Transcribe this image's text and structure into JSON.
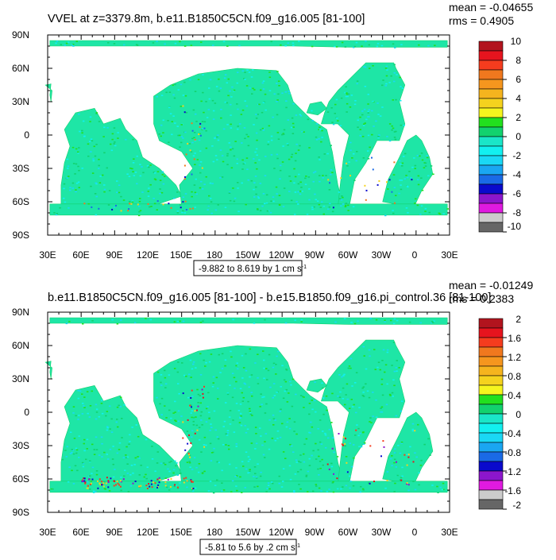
{
  "palette": [
    "#666666",
    "#cccccc",
    "#e01ae0",
    "#8c16cc",
    "#0a0acc",
    "#1a6ae6",
    "#1aa6f2",
    "#1ad8f5",
    "#12f0f0",
    "#1ae6c8",
    "#12d26e",
    "#22e01e",
    "#f5f51e",
    "#f5d21e",
    "#f5b41e",
    "#f5961e",
    "#f0781e",
    "#f53c1e",
    "#e6141e",
    "#b2141e"
  ],
  "map_fill": {
    "base": "#1ee6a6",
    "speckles": [
      "#12d26e",
      "#12f0f0",
      "#22e01e",
      "#1ad8f5"
    ]
  },
  "panels": [
    {
      "title": "VVEL at z=3379.8m, b.e11.B1850C5CN.f09_g16.005 [81-100]",
      "mean": "mean = -0.04655",
      "rms": "rms = 0.4905",
      "cn_info": "-9.882 to 8.619 by 1 cm s",
      "cn_units_sup": "-1",
      "lat_labels": [
        "90N",
        "60N",
        "30N",
        "0",
        "30S",
        "60S",
        "90S"
      ],
      "lon_labels": [
        "30E",
        "60E",
        "90E",
        "120E",
        "150E",
        "180",
        "150W",
        "120W",
        "90W",
        "60W",
        "30W",
        "0",
        "30E"
      ],
      "colorbar": {
        "levels": [
          "10",
          "8",
          "6",
          "4",
          "2",
          "0",
          "-2",
          "-4",
          "-6",
          "-8",
          "-10"
        ]
      }
    },
    {
      "title": "b.e11.B1850C5CN.f09_g16.005 [81-100] - b.e15.B1850.f09_g16.pi_control.36 [81-100]",
      "mean": "mean = -0.01249",
      "rms": "rms = 0.2383",
      "cn_info": "-5.81 to 5.6 by .2 cm s",
      "cn_units_sup": "-1",
      "lat_labels": [
        "90N",
        "60N",
        "30N",
        "0",
        "30S",
        "60S",
        "90S"
      ],
      "lon_labels": [
        "30E",
        "60E",
        "90E",
        "120E",
        "150E",
        "180",
        "150W",
        "120W",
        "90W",
        "60W",
        "30W",
        "0",
        "30E"
      ],
      "colorbar": {
        "levels": [
          "2",
          "1.6",
          "1.2",
          "0.8",
          "0.4",
          "0",
          "-0.4",
          "-0.8",
          "-1.2",
          "-1.6",
          "-2"
        ]
      }
    }
  ],
  "chart_data": [
    {
      "type": "heatmap",
      "title": "VVEL at z=3379.8m, b.e11.B1850C5CN.f09_g16.005 [81-100]",
      "variable": "VVEL",
      "units": "cm s-1",
      "x_axis": {
        "type": "longitude",
        "range": [
          30,
          390
        ],
        "ticks": [
          "30E",
          "60E",
          "90E",
          "120E",
          "150E",
          "180",
          "150W",
          "120W",
          "90W",
          "60W",
          "30W",
          "0",
          "30E"
        ]
      },
      "y_axis": {
        "type": "latitude",
        "range": [
          -90,
          90
        ],
        "ticks": [
          "90N",
          "60N",
          "30N",
          "0",
          "30S",
          "60S",
          "90S"
        ]
      },
      "stats": {
        "mean": -0.04655,
        "rms": 0.4905
      },
      "contour_min": -9.882,
      "contour_max": 8.619,
      "contour_interval": 1,
      "colorbar_levels": [
        -10,
        -8,
        -6,
        -4,
        -2,
        0,
        2,
        4,
        6,
        8,
        10
      ]
    },
    {
      "type": "heatmap",
      "title": "b.e11.B1850C5CN.f09_g16.005 [81-100] - b.e15.B1850.f09_g16.pi_control.36 [81-100]",
      "variable": "VVEL difference",
      "units": "cm s-1",
      "x_axis": {
        "type": "longitude",
        "range": [
          30,
          390
        ],
        "ticks": [
          "30E",
          "60E",
          "90E",
          "120E",
          "150E",
          "180",
          "150W",
          "120W",
          "90W",
          "60W",
          "30W",
          "0",
          "30E"
        ]
      },
      "y_axis": {
        "type": "latitude",
        "range": [
          -90,
          90
        ],
        "ticks": [
          "90N",
          "60N",
          "30N",
          "0",
          "30S",
          "60S",
          "90S"
        ]
      },
      "stats": {
        "mean": -0.01249,
        "rms": 0.2383
      },
      "contour_min": -5.81,
      "contour_max": 5.6,
      "contour_interval": 0.2,
      "colorbar_levels": [
        -2,
        -1.6,
        -1.2,
        -0.8,
        -0.4,
        0,
        0.4,
        0.8,
        1.2,
        1.6,
        2
      ]
    }
  ],
  "ocean_regions": [
    {
      "name": "arctic",
      "poly": [
        [
          32,
          85
        ],
        [
          388,
          85
        ],
        [
          388,
          79
        ],
        [
          300,
          79
        ],
        [
          250,
          80
        ],
        [
          180,
          80
        ],
        [
          100,
          80
        ],
        [
          32,
          80
        ]
      ]
    },
    {
      "name": "indian",
      "poly": [
        [
          42,
          -65
        ],
        [
          42,
          -45
        ],
        [
          45,
          -25
        ],
        [
          50,
          -10
        ],
        [
          45,
          5
        ],
        [
          55,
          20
        ],
        [
          72,
          24
        ],
        [
          80,
          10
        ],
        [
          95,
          15
        ],
        [
          100,
          5
        ],
        [
          110,
          -5
        ],
        [
          115,
          -20
        ],
        [
          130,
          -30
        ],
        [
          145,
          -45
        ],
        [
          150,
          -55
        ],
        [
          120,
          -65
        ],
        [
          80,
          -68
        ]
      ]
    },
    {
      "name": "pacific",
      "poly": [
        [
          150,
          -65
        ],
        [
          148,
          -45
        ],
        [
          160,
          -30
        ],
        [
          150,
          -15
        ],
        [
          130,
          -5
        ],
        [
          125,
          10
        ],
        [
          125,
          35
        ],
        [
          140,
          45
        ],
        [
          165,
          55
        ],
        [
          200,
          60
        ],
        [
          235,
          58
        ],
        [
          245,
          45
        ],
        [
          250,
          30
        ],
        [
          265,
          15
        ],
        [
          280,
          5
        ],
        [
          285,
          -15
        ],
        [
          290,
          -45
        ],
        [
          295,
          -65
        ],
        [
          220,
          -70
        ]
      ]
    },
    {
      "name": "atlantic",
      "poly": [
        [
          300,
          -65
        ],
        [
          305,
          -40
        ],
        [
          315,
          -25
        ],
        [
          325,
          -5
        ],
        [
          345,
          -5
        ],
        [
          350,
          10
        ],
        [
          345,
          30
        ],
        [
          350,
          45
        ],
        [
          342,
          60
        ],
        [
          340,
          65
        ],
        [
          315,
          65
        ],
        [
          300,
          50
        ],
        [
          290,
          40
        ],
        [
          282,
          30
        ],
        [
          278,
          20
        ],
        [
          275,
          10
        ],
        [
          290,
          10
        ],
        [
          300,
          0
        ],
        [
          295,
          -20
        ],
        [
          292,
          -45
        ],
        [
          290,
          -65
        ]
      ]
    },
    {
      "name": "atlantic-east",
      "poly": [
        [
          358,
          -65
        ],
        [
          365,
          -50
        ],
        [
          375,
          -35
        ],
        [
          372,
          -20
        ],
        [
          365,
          -5
        ],
        [
          360,
          0
        ],
        [
          352,
          -5
        ],
        [
          345,
          -20
        ],
        [
          335,
          -40
        ],
        [
          330,
          -60
        ]
      ]
    },
    {
      "name": "southern",
      "poly": [
        [
          32,
          -72
        ],
        [
          388,
          -72
        ],
        [
          388,
          -62
        ],
        [
          32,
          -62
        ]
      ]
    },
    {
      "name": "med",
      "poly": [
        [
          33,
          30
        ],
        [
          34,
          40
        ],
        [
          28,
          45
        ],
        [
          33,
          46
        ],
        [
          32,
          36
        ]
      ]
    },
    {
      "name": "gulf-mexico",
      "poly": [
        [
          262,
          20
        ],
        [
          265,
          28
        ],
        [
          275,
          30
        ],
        [
          280,
          24
        ],
        [
          272,
          18
        ]
      ]
    }
  ]
}
